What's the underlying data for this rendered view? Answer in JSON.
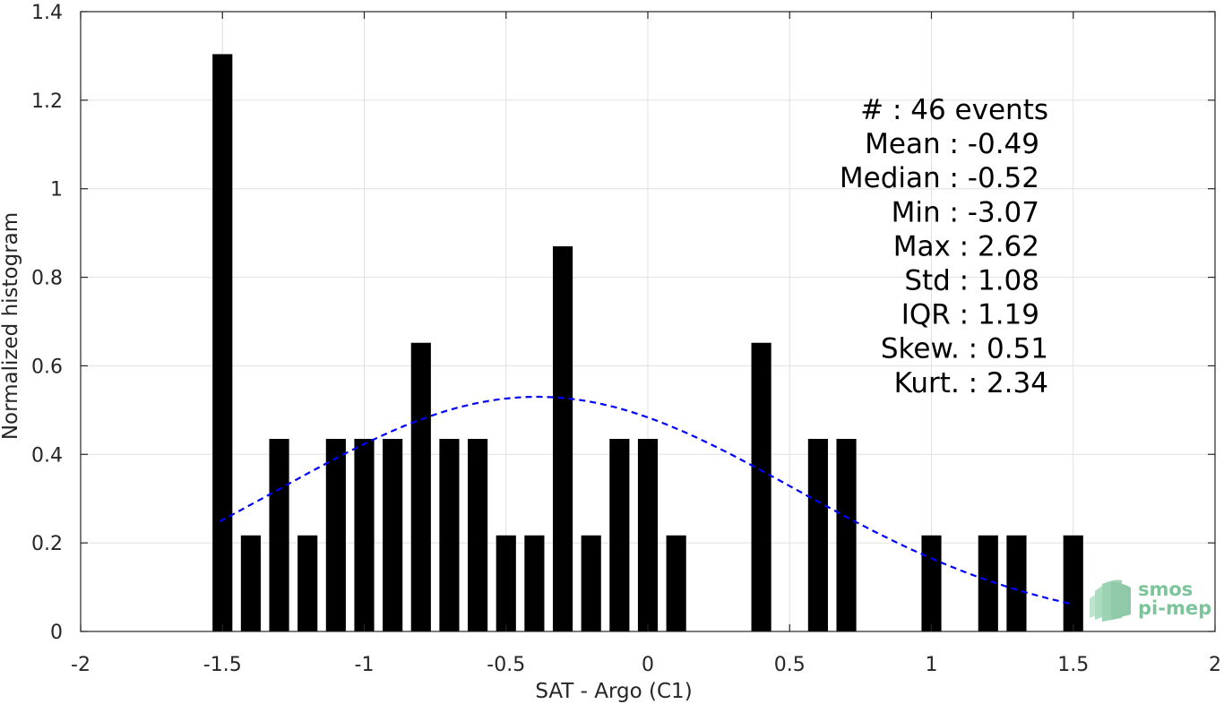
{
  "chart_data": {
    "type": "bar",
    "title": "",
    "xlabel": "SAT - Argo (C1)",
    "ylabel": "Normalized histogram",
    "xlim": [
      -2,
      2
    ],
    "ylim": [
      0,
      1.4
    ],
    "xticks": [
      -2,
      -1.5,
      -1,
      -0.5,
      0,
      0.5,
      1,
      1.5,
      2
    ],
    "xtick_labels": [
      "-2",
      "-1.5",
      "-1",
      "-0.5",
      "0",
      "0.5",
      "1",
      "1.5",
      "2"
    ],
    "yticks": [
      0,
      0.2,
      0.4,
      0.6,
      0.8,
      1,
      1.2,
      1.4
    ],
    "ytick_labels": [
      "0",
      "0.2",
      "0.4",
      "0.6",
      "0.8",
      "1",
      "1.2",
      "1.4"
    ],
    "grid": true,
    "bar_color": "#000000",
    "bar_width": 0.07,
    "x": [
      -1.5,
      -1.4,
      -1.3,
      -1.2,
      -1.1,
      -1.0,
      -0.9,
      -0.8,
      -0.7,
      -0.6,
      -0.5,
      -0.4,
      -0.3,
      -0.2,
      -0.1,
      0.0,
      0.1,
      0.2,
      0.3,
      0.4,
      0.5,
      0.6,
      0.7,
      0.8,
      0.9,
      1.0,
      1.1,
      1.2,
      1.3,
      1.4,
      1.5
    ],
    "values": [
      1.304,
      0.217,
      0.435,
      0.217,
      0.435,
      0.435,
      0.435,
      0.652,
      0.435,
      0.435,
      0.217,
      0.217,
      0.87,
      0.217,
      0.435,
      0.435,
      0.217,
      0,
      0,
      0.652,
      0,
      0.435,
      0.435,
      0,
      0,
      0.217,
      0,
      0.217,
      0.217,
      0,
      0.217
    ],
    "fit_curve": {
      "type": "gaussian",
      "style": "dashed",
      "color": "#0000ff",
      "x_range": [
        -1.51,
        1.49
      ],
      "mean": -0.39,
      "std": 0.91,
      "peak": 0.53
    },
    "stats_lines": [
      "#  : 46 events",
      "Mean : -0.49",
      "Median : -0.52",
      "Min : -3.07",
      "Max : 2.62",
      "Std : 1.08",
      "IQR : 1.19",
      "Skew. : 0.51",
      "Kurt. : 2.34"
    ]
  },
  "logo": {
    "line1": "smos",
    "line2": "pi-mep",
    "color": "#7cc59a"
  }
}
